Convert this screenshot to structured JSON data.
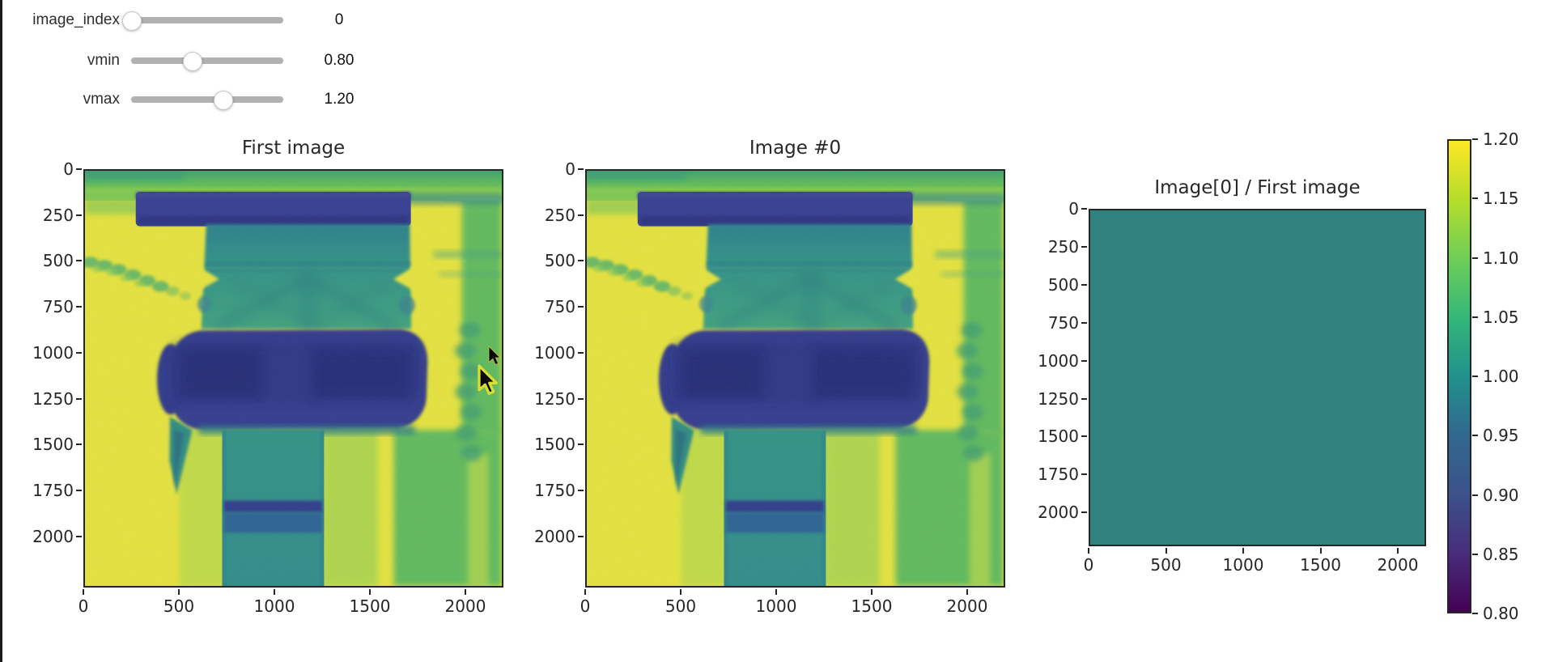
{
  "sliders": [
    {
      "label": "image_index",
      "value": "0",
      "percent": 0
    },
    {
      "label": "vmin",
      "value": "0.80",
      "percent": 40
    },
    {
      "label": "vmax",
      "value": "1.20",
      "percent": 60
    }
  ],
  "plots": [
    {
      "title": "First image",
      "x_ticks": [
        "0",
        "500",
        "1000",
        "1500",
        "2000"
      ],
      "y_ticks": [
        "0",
        "250",
        "500",
        "750",
        "1000",
        "1250",
        "1500",
        "1750",
        "2000"
      ]
    },
    {
      "title": "Image #0",
      "x_ticks": [
        "0",
        "500",
        "1000",
        "1500",
        "2000"
      ],
      "y_ticks": [
        "0",
        "250",
        "500",
        "750",
        "1000",
        "1250",
        "1500",
        "1750",
        "2000"
      ]
    },
    {
      "title": "Image[0] / First image",
      "x_ticks": [
        "0",
        "500",
        "1000",
        "1500",
        "2000"
      ],
      "y_ticks": [
        "0",
        "250",
        "500",
        "750",
        "1000",
        "1250",
        "1500",
        "1750",
        "2000"
      ]
    }
  ],
  "colorbar": {
    "tick_labels": [
      "1.20",
      "1.15",
      "1.10",
      "1.05",
      "1.00",
      "0.95",
      "0.90",
      "0.85",
      "0.80"
    ],
    "gradient_top_to_bottom": [
      "#fde725",
      "#b5de2b",
      "#6ece58",
      "#35b779",
      "#21918c",
      "#31688e",
      "#3b528b",
      "#472d7b",
      "#440154"
    ]
  },
  "chart_data": [
    {
      "type": "heatmap",
      "title": "First image",
      "colormap": "viridis",
      "vmin": 0.8,
      "vmax": 1.2,
      "x_extent": [
        0,
        2200
      ],
      "y_extent": [
        0,
        2300
      ]
    },
    {
      "type": "heatmap",
      "title": "Image #0",
      "colormap": "viridis",
      "vmin": 0.8,
      "vmax": 1.2,
      "x_extent": [
        0,
        2200
      ],
      "y_extent": [
        0,
        2300
      ]
    },
    {
      "type": "heatmap",
      "title": "Image[0] / First image",
      "colormap": "viridis",
      "vmin": 0.8,
      "vmax": 1.2,
      "x_extent": [
        0,
        2200
      ],
      "y_extent": [
        0,
        2300
      ],
      "uniform_value": 1.0
    }
  ],
  "colors": {
    "ratio_fill": "#30827f",
    "axes": "#262626",
    "slider_track": "#b1b1b1"
  }
}
